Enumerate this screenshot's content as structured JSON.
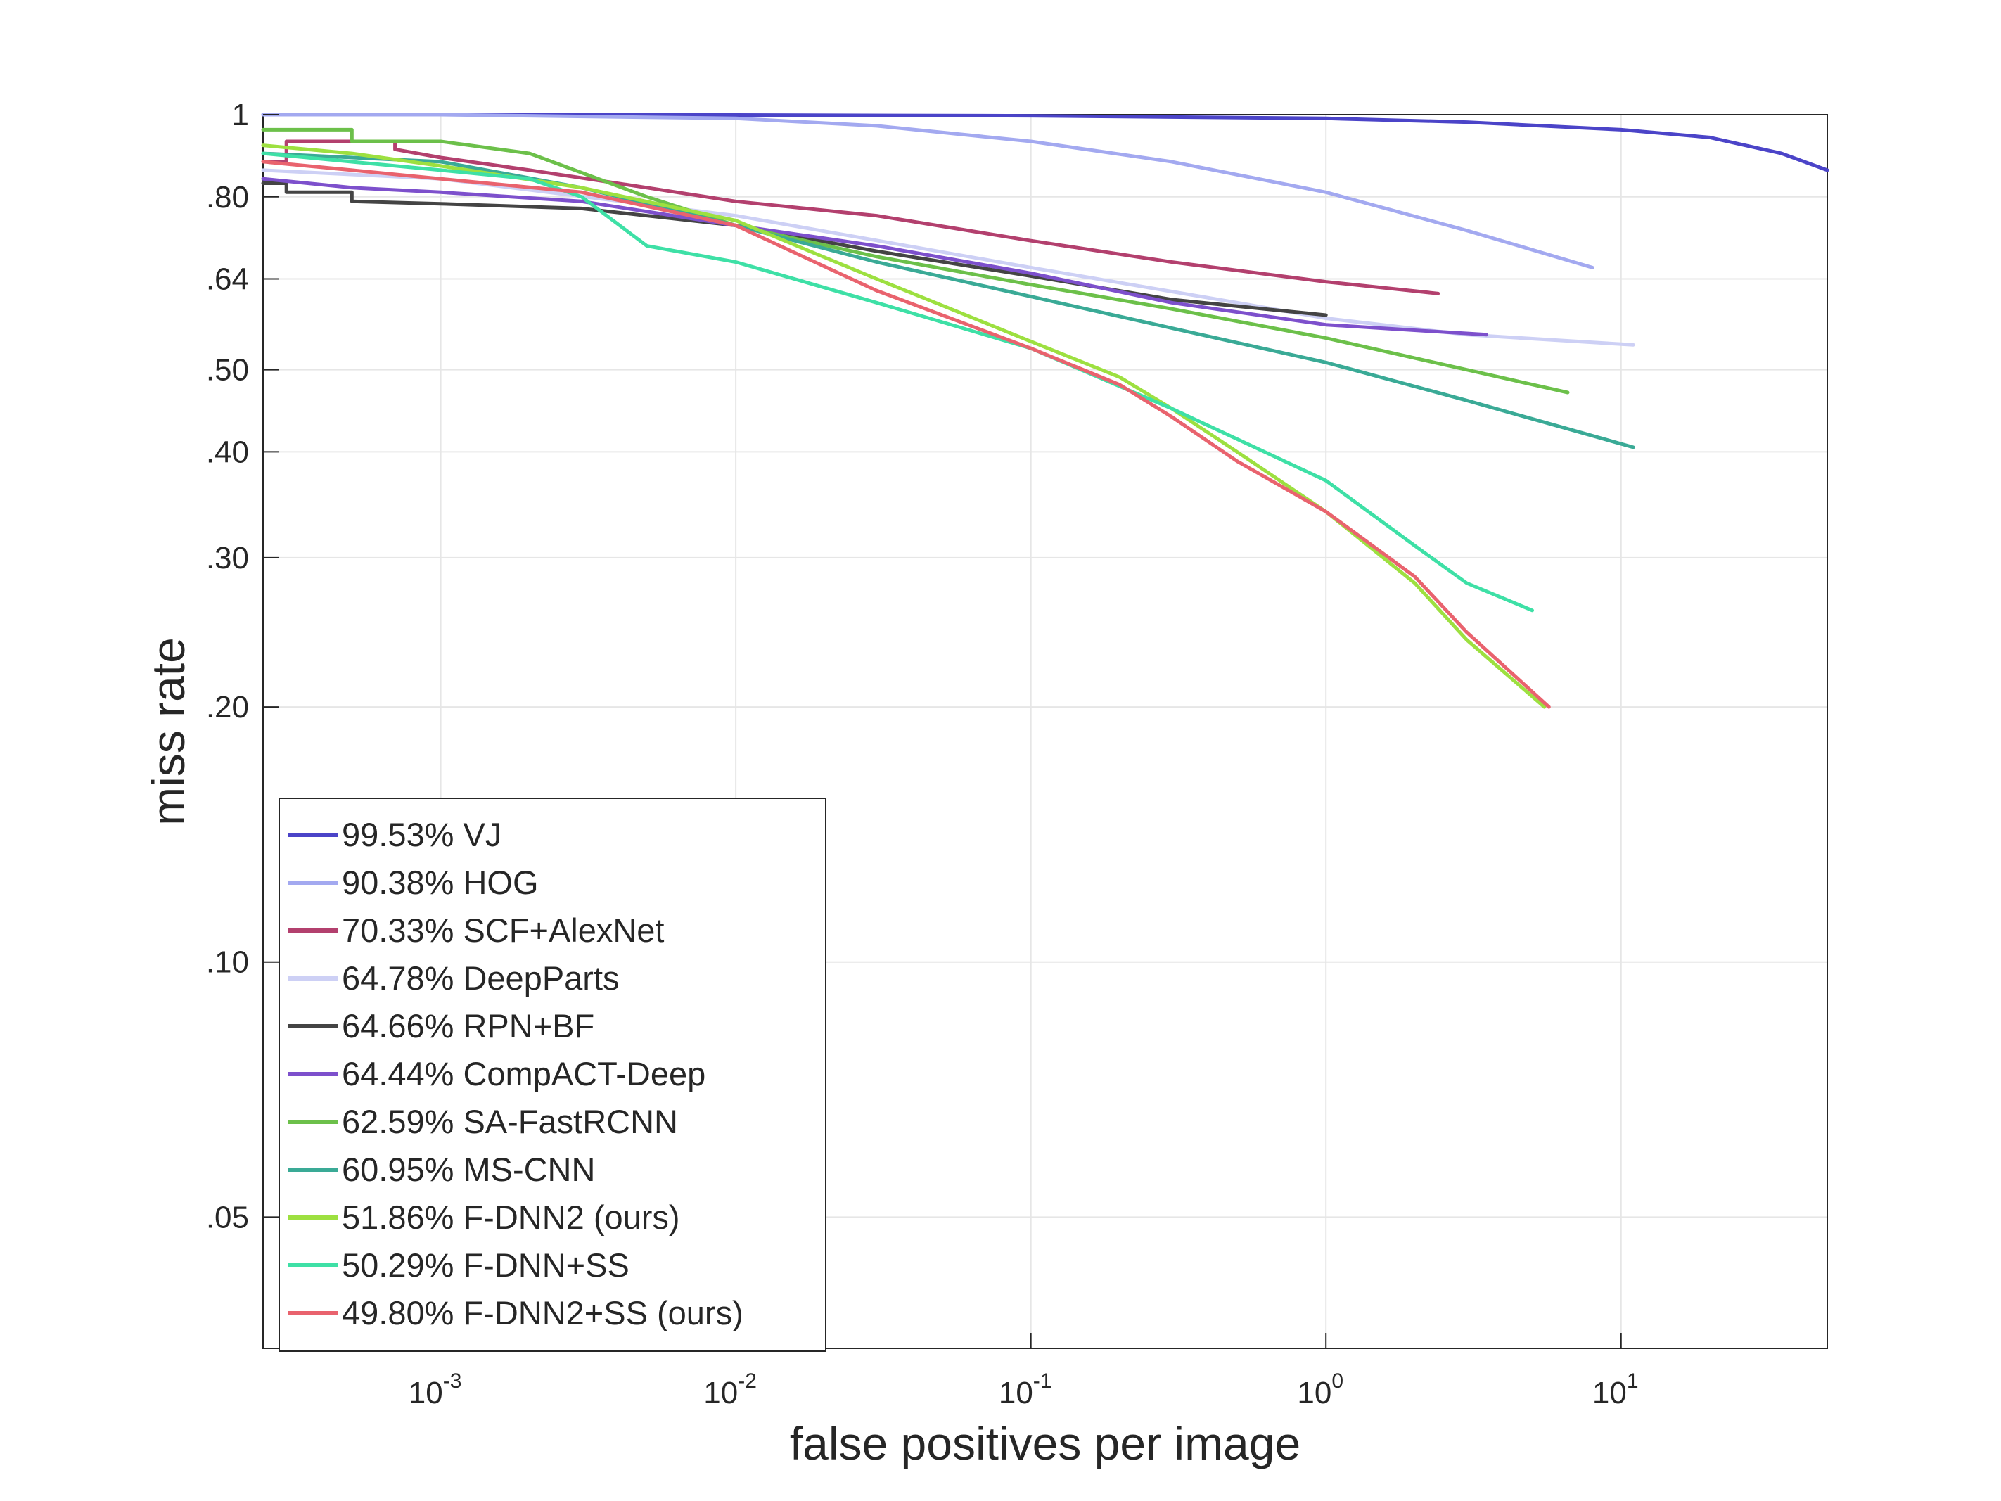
{
  "chart_data": {
    "type": "line",
    "xlabel": "false positives per image",
    "ylabel": "miss rate",
    "x_scale": "log",
    "y_scale": "log",
    "xlim": [
      0.00025,
      50
    ],
    "ylim": [
      0.035,
      1
    ],
    "grid": true,
    "legend_position": "bottom-left",
    "x_ticks": [
      {
        "value": 0.001,
        "base": "10",
        "exp": "-3"
      },
      {
        "value": 0.01,
        "base": "10",
        "exp": "-2"
      },
      {
        "value": 0.1,
        "base": "10",
        "exp": "-1"
      },
      {
        "value": 1,
        "base": "10",
        "exp": "0"
      },
      {
        "value": 10,
        "base": "10",
        "exp": "1"
      }
    ],
    "y_ticks": [
      {
        "value": 1,
        "label": "1"
      },
      {
        "value": 0.8,
        "label": ".80"
      },
      {
        "value": 0.64,
        "label": ".64"
      },
      {
        "value": 0.5,
        "label": ".50"
      },
      {
        "value": 0.4,
        "label": ".40"
      },
      {
        "value": 0.3,
        "label": ".30"
      },
      {
        "value": 0.2,
        "label": ".20"
      },
      {
        "value": 0.1,
        "label": ".10"
      },
      {
        "value": 0.05,
        "label": ".05"
      }
    ],
    "series": [
      {
        "name": "99.53% VJ",
        "color": "#4b44c8",
        "x": [
          0.00025,
          0.001,
          0.01,
          0.1,
          1,
          3,
          10,
          20,
          35,
          50
        ],
        "y": [
          1.0,
          1.0,
          0.999,
          0.997,
          0.99,
          0.98,
          0.96,
          0.94,
          0.9,
          0.86
        ]
      },
      {
        "name": "90.38% HOG",
        "color": "#a3a9f0",
        "x": [
          0.00025,
          0.001,
          0.01,
          0.03,
          0.1,
          0.3,
          1,
          3,
          8
        ],
        "y": [
          1.0,
          1.0,
          0.99,
          0.97,
          0.93,
          0.88,
          0.81,
          0.73,
          0.66
        ]
      },
      {
        "name": "70.33% SCF+AlexNet",
        "color": "#b3406e",
        "x": [
          0.00025,
          0.0003,
          0.0003,
          0.0007,
          0.0007,
          0.001,
          0.002,
          0.005,
          0.01,
          0.03,
          0.1,
          0.3,
          1,
          2.4
        ],
        "y": [
          0.88,
          0.88,
          0.93,
          0.93,
          0.91,
          0.89,
          0.86,
          0.82,
          0.79,
          0.76,
          0.71,
          0.67,
          0.635,
          0.615
        ]
      },
      {
        "name": "64.78% DeepParts",
        "color": "#cdd0f5",
        "x": [
          0.00025,
          0.001,
          0.01,
          0.1,
          0.5,
          1,
          3,
          11
        ],
        "y": [
          0.86,
          0.84,
          0.76,
          0.66,
          0.6,
          0.575,
          0.55,
          0.535
        ]
      },
      {
        "name": "64.66% RPN+BF",
        "color": "#444444",
        "x": [
          0.00025,
          0.0003,
          0.0003,
          0.0005,
          0.0005,
          0.001,
          0.003,
          0.01,
          0.03,
          0.1,
          0.3,
          1
        ],
        "y": [
          0.83,
          0.83,
          0.81,
          0.81,
          0.79,
          0.785,
          0.775,
          0.74,
          0.69,
          0.645,
          0.605,
          0.58
        ]
      },
      {
        "name": "64.44% CompACT-Deep",
        "color": "#7d50cc",
        "x": [
          0.00025,
          0.0005,
          0.001,
          0.003,
          0.01,
          0.03,
          0.1,
          0.3,
          1,
          3.5
        ],
        "y": [
          0.84,
          0.82,
          0.81,
          0.79,
          0.74,
          0.7,
          0.65,
          0.6,
          0.565,
          0.55
        ]
      },
      {
        "name": "62.59% SA-FastRCNN",
        "color": "#6cc04a",
        "x": [
          0.00025,
          0.0005,
          0.0005,
          0.001,
          0.002,
          0.005,
          0.01,
          0.03,
          0.1,
          0.3,
          1,
          3,
          6.6
        ],
        "y": [
          0.96,
          0.96,
          0.93,
          0.93,
          0.9,
          0.8,
          0.74,
          0.68,
          0.63,
          0.59,
          0.545,
          0.5,
          0.47
        ]
      },
      {
        "name": "60.95% MS-CNN",
        "color": "#3aaa96",
        "x": [
          0.00025,
          0.001,
          0.003,
          0.01,
          0.03,
          0.1,
          0.3,
          1,
          3,
          11
        ],
        "y": [
          0.9,
          0.88,
          0.82,
          0.74,
          0.67,
          0.61,
          0.56,
          0.51,
          0.46,
          0.405
        ]
      },
      {
        "name": "51.86% F-DNN2 (ours)",
        "color": "#9de040",
        "x": [
          0.00025,
          0.0005,
          0.001,
          0.003,
          0.01,
          0.03,
          0.1,
          0.2,
          0.3,
          0.5,
          1,
          2,
          3,
          5.5
        ],
        "y": [
          0.92,
          0.9,
          0.87,
          0.82,
          0.75,
          0.64,
          0.54,
          0.49,
          0.45,
          0.4,
          0.34,
          0.28,
          0.24,
          0.2
        ]
      },
      {
        "name": "50.29% F-DNN+SS",
        "color": "#3ee0a6",
        "x": [
          0.00025,
          0.001,
          0.002,
          0.003,
          0.005,
          0.01,
          0.03,
          0.1,
          0.3,
          1,
          2,
          3,
          5
        ],
        "y": [
          0.9,
          0.86,
          0.84,
          0.8,
          0.7,
          0.67,
          0.6,
          0.53,
          0.45,
          0.37,
          0.31,
          0.28,
          0.26
        ]
      },
      {
        "name": "49.80% F-DNN2+SS (ours)",
        "color": "#e9636e",
        "x": [
          0.00025,
          0.0005,
          0.001,
          0.003,
          0.01,
          0.03,
          0.1,
          0.2,
          0.3,
          0.5,
          1,
          2,
          3,
          5.7
        ],
        "y": [
          0.88,
          0.86,
          0.84,
          0.81,
          0.74,
          0.62,
          0.53,
          0.48,
          0.44,
          0.39,
          0.34,
          0.285,
          0.245,
          0.2
        ]
      }
    ]
  }
}
